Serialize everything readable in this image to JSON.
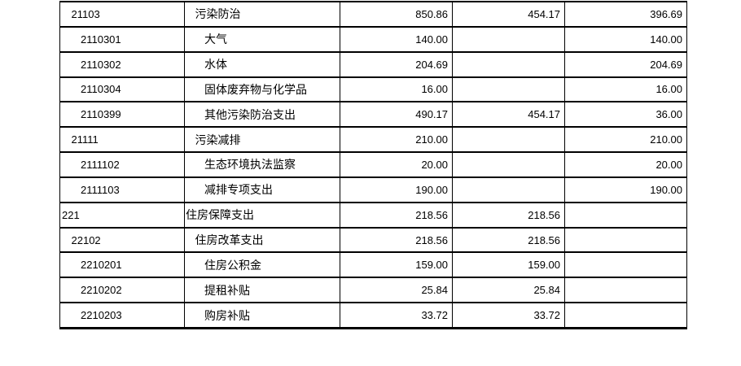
{
  "colors": {
    "background": "#ffffff",
    "text": "#000000",
    "grid_border": "#000000"
  },
  "table": {
    "rows": [
      {
        "code": "21103",
        "name": "污染防治",
        "indent_level": 1,
        "amount_1": "850.86",
        "amount_2": "454.17",
        "amount_3": "396.69"
      },
      {
        "code": "2110301",
        "name": "大气",
        "indent_level": 2,
        "amount_1": "140.00",
        "amount_2": "",
        "amount_3": "140.00"
      },
      {
        "code": "2110302",
        "name": "水体",
        "indent_level": 2,
        "amount_1": "204.69",
        "amount_2": "",
        "amount_3": "204.69"
      },
      {
        "code": "2110304",
        "name": "固体废弃物与化学品",
        "indent_level": 2,
        "amount_1": "16.00",
        "amount_2": "",
        "amount_3": "16.00"
      },
      {
        "code": "2110399",
        "name": "其他污染防治支出",
        "indent_level": 2,
        "amount_1": "490.17",
        "amount_2": "454.17",
        "amount_3": "36.00"
      },
      {
        "code": "21111",
        "name": "污染减排",
        "indent_level": 1,
        "amount_1": "210.00",
        "amount_2": "",
        "amount_3": "210.00"
      },
      {
        "code": "2111102",
        "name": "生态环境执法监察",
        "indent_level": 2,
        "amount_1": "20.00",
        "amount_2": "",
        "amount_3": "20.00"
      },
      {
        "code": "2111103",
        "name": "减排专项支出",
        "indent_level": 2,
        "amount_1": "190.00",
        "amount_2": "",
        "amount_3": "190.00"
      },
      {
        "code": "221",
        "name": "住房保障支出",
        "indent_level": 0,
        "amount_1": "218.56",
        "amount_2": "218.56",
        "amount_3": ""
      },
      {
        "code": "22102",
        "name": "住房改革支出",
        "indent_level": 1,
        "amount_1": "218.56",
        "amount_2": "218.56",
        "amount_3": ""
      },
      {
        "code": "2210201",
        "name": "住房公积金",
        "indent_level": 2,
        "amount_1": "159.00",
        "amount_2": "159.00",
        "amount_3": ""
      },
      {
        "code": "2210202",
        "name": "提租补贴",
        "indent_level": 2,
        "amount_1": "25.84",
        "amount_2": "25.84",
        "amount_3": ""
      },
      {
        "code": "2210203",
        "name": "购房补贴",
        "indent_level": 2,
        "amount_1": "33.72",
        "amount_2": "33.72",
        "amount_3": ""
      }
    ]
  }
}
